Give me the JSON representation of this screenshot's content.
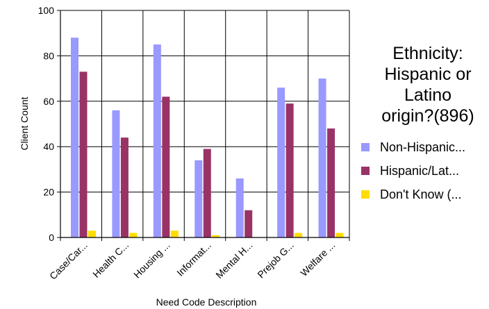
{
  "chart_data": {
    "type": "bar",
    "title": "",
    "xlabel": "Need Code Description",
    "ylabel": "Client Count",
    "ylim": [
      0,
      100
    ],
    "yticks": [
      0,
      20,
      40,
      60,
      80,
      100
    ],
    "grid": true,
    "legend_position": "right",
    "categories": [
      "Case/Car...",
      "Health C...",
      "Housing ...",
      "Informat...",
      "Mental H...",
      "Prejob G...",
      "Welfare ..."
    ],
    "series": [
      {
        "name": "Non-Hispanic...",
        "color": "#9999ff",
        "values": [
          88,
          56,
          85,
          34,
          26,
          66,
          70
        ]
      },
      {
        "name": "Hispanic/Lat...",
        "color": "#993366",
        "values": [
          73,
          44,
          62,
          39,
          12,
          59,
          48
        ]
      },
      {
        "name": "Don't Know (...",
        "color": "#ffdd00",
        "values": [
          3,
          2,
          3,
          1,
          0,
          2,
          2
        ]
      }
    ]
  },
  "legend": {
    "title_lines": [
      "Ethnicity:",
      "Hispanic or",
      "Latino",
      "origin?(896)"
    ]
  }
}
